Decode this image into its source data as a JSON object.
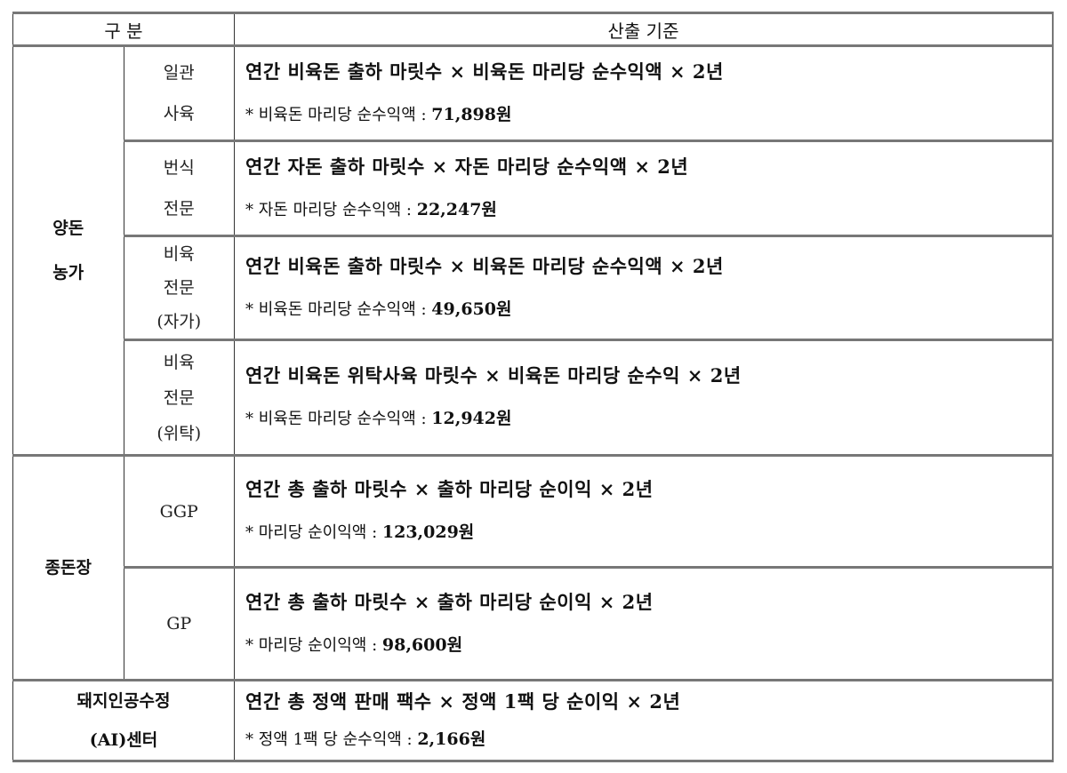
{
  "header": {
    "category": "구  분",
    "criteria": "산출 기준"
  },
  "groups": {
    "pig_farm": "양돈\n농가",
    "breeding_farm": "종돈장",
    "ai_center": "돼지인공수정\n(AI)센터"
  },
  "rows": [
    {
      "sub": "일관\n사육",
      "formula": "연간 비육돈 출하 마릿수 × 비육돈 마리당 순수익액 × 2년",
      "note_label": "* 비육돈 마리당 순수익액 : ",
      "note_value": "71,898원"
    },
    {
      "sub": "번식\n전문",
      "formula": "연간 자돈 출하 마릿수 × 자돈 마리당 순수익액 × 2년",
      "note_label": "* 자돈 마리당 순수익액 : ",
      "note_value": "22,247원"
    },
    {
      "sub": "비육\n전문\n(자가)",
      "formula": "연간 비육돈 출하 마릿수 × 비육돈 마리당 순수익액 × 2년",
      "note_label": "* 비육돈 마리당 순수익액 : ",
      "note_value": "49,650원"
    },
    {
      "sub": "비육\n전문\n(위탁)",
      "formula": "연간 비육돈 위탁사육 마릿수 × 비육돈 마리당 순수익 × 2년",
      "note_label": "* 비육돈 마리당 순수익액 : ",
      "note_value": "12,942원"
    },
    {
      "sub": "GGP",
      "formula": "연간 총 출하 마릿수 × 출하 마리당 순이익 × 2년",
      "note_label": "* 마리당 순이익액 : ",
      "note_value": "123,029원"
    },
    {
      "sub": "GP",
      "formula": "연간 총 출하 마릿수 × 출하 마리당 순이익 × 2년",
      "note_label": "* 마리당 순이익액 : ",
      "note_value": "98,600원"
    },
    {
      "formula": "연간 총 정액 판매 팩수 × 정액 1팩 당 순이익 × 2년",
      "note_label": "* 정액 1팩 당 순수익액 : ",
      "note_value": "2,166원"
    }
  ]
}
